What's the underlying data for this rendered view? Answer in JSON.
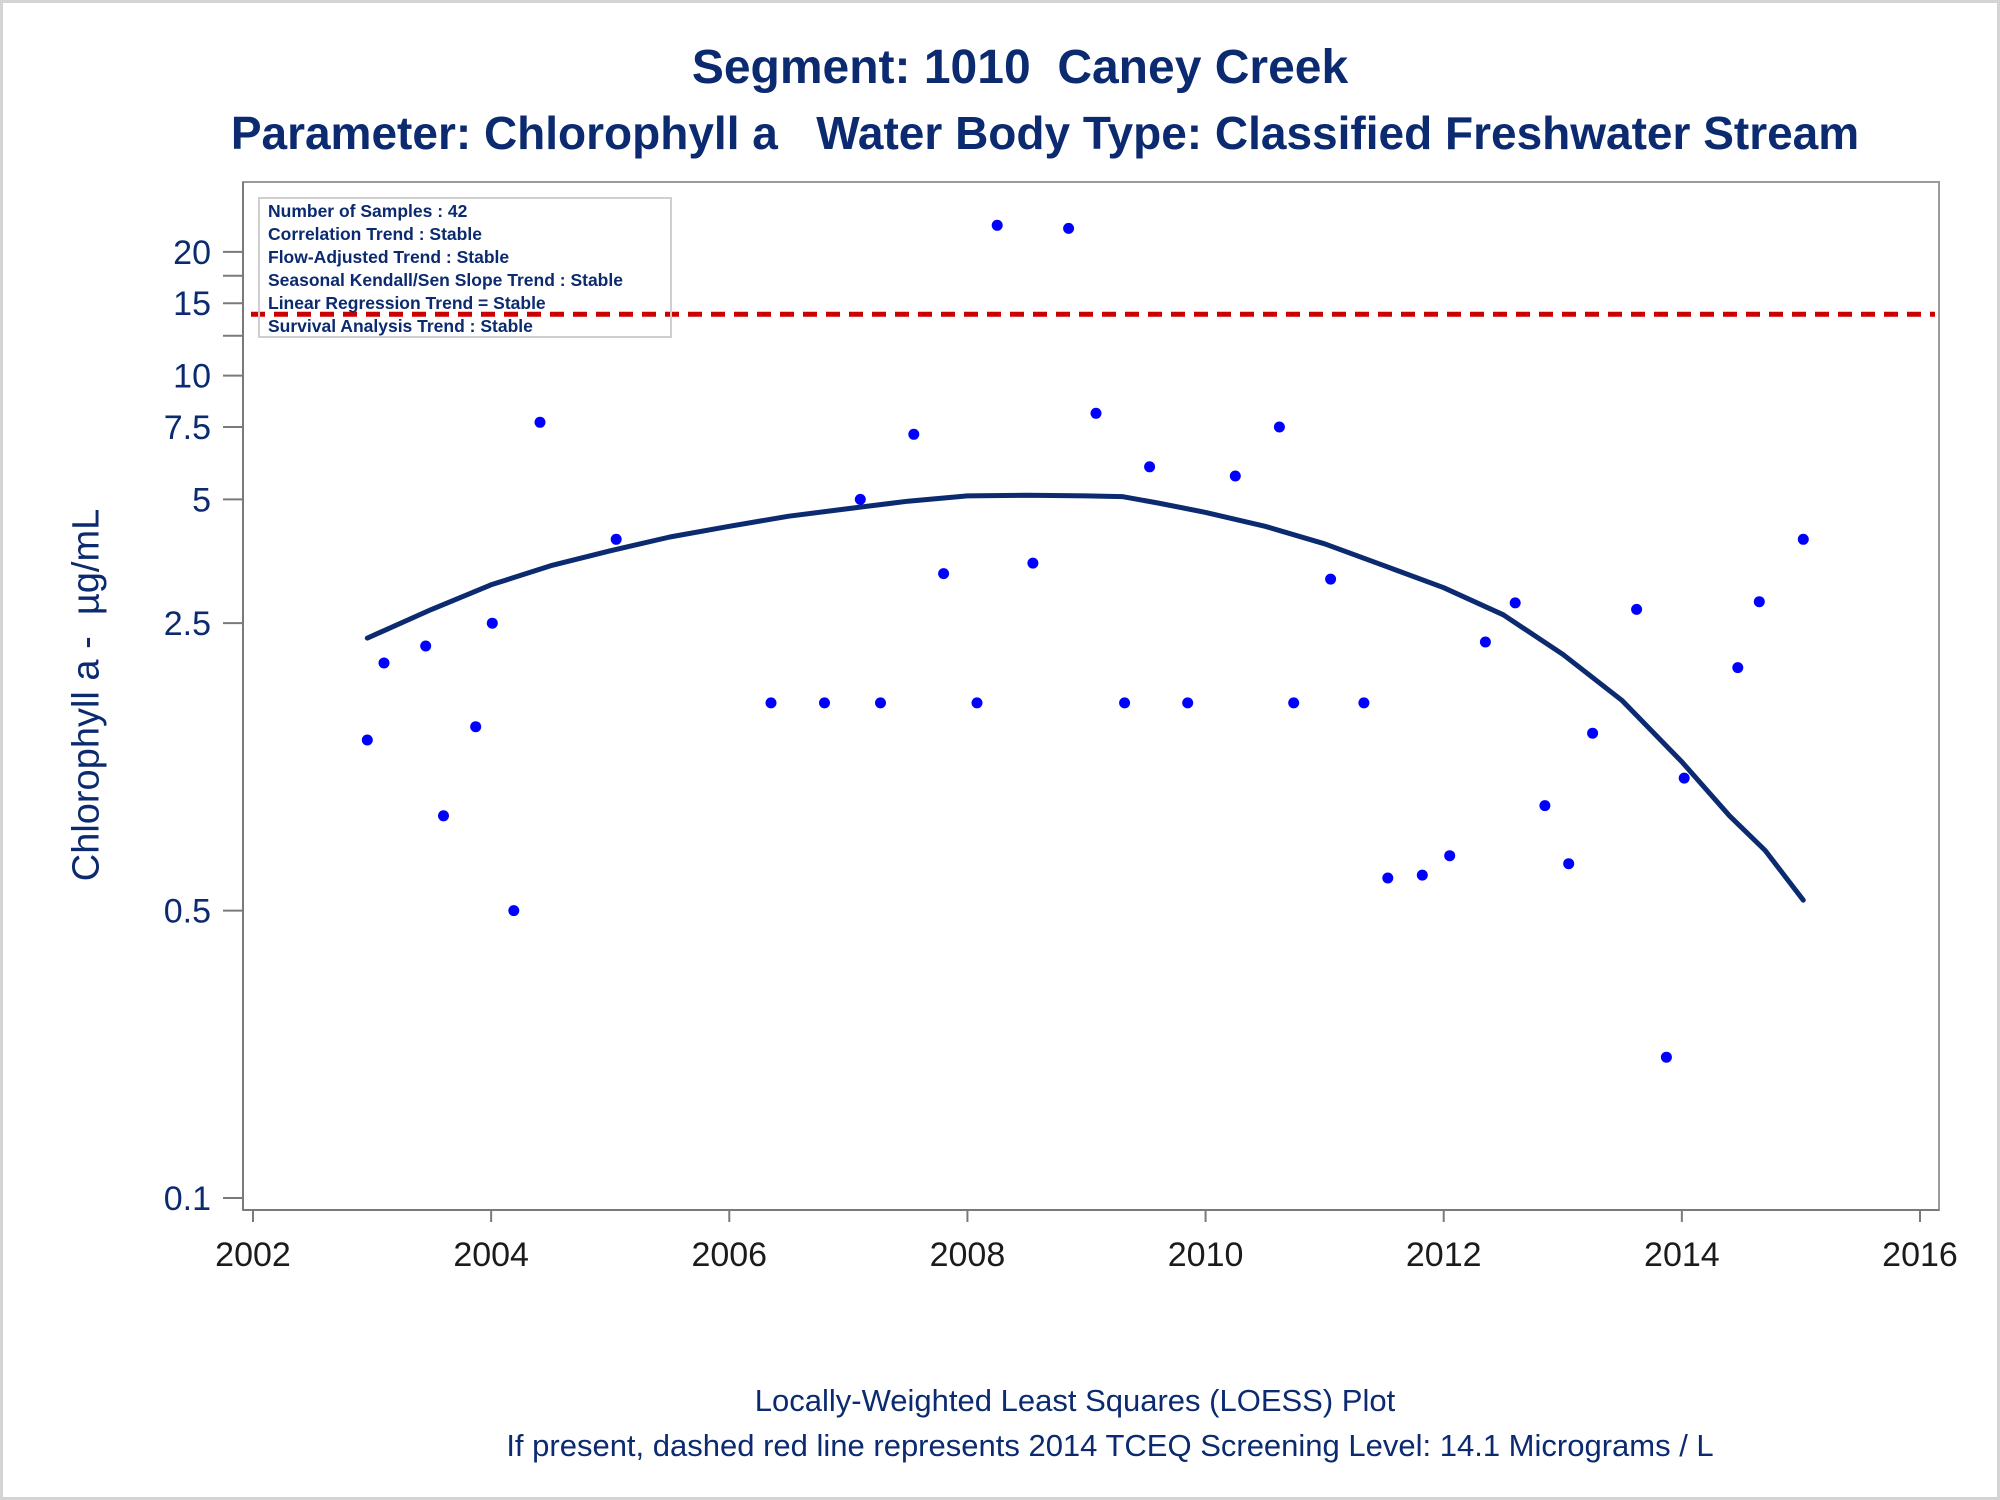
{
  "chart_data": {
    "type": "scatter",
    "title": "Segment: 1010  Caney Creek",
    "subtitle": "Parameter: Chlorophyll a   Water Body Type: Classified Freshwater Stream",
    "xlabel": "",
    "ylabel": "Chlorophyll a -  µg/mL",
    "footnotes": [
      "Locally-Weighted Least Squares (LOESS) Plot",
      "If present, dashed red line represents 2014 TCEQ Screening Level: 14.1 Micrograms / L"
    ],
    "stats": [
      "Number of Samples : 42",
      "Correlation Trend : Stable",
      "Flow-Adjusted Trend : Stable",
      "Seasonal Kendall/Sen Slope Trend : Stable",
      "Linear Regression Trend = Stable",
      "Survival Analysis Trend : Stable"
    ],
    "x_axis": {
      "type": "date",
      "range": [
        2002.0,
        2016.0
      ],
      "ticks": [
        2002,
        2004,
        2006,
        2008,
        2010,
        2012,
        2014,
        2016
      ],
      "tick_labels": [
        "2002",
        "2004",
        "2006",
        "2008",
        "2010",
        "2012",
        "2014",
        "2016"
      ]
    },
    "y_axis": {
      "type": "log",
      "range": [
        0.1,
        25.0
      ],
      "ticks": [
        0.1,
        0.5,
        2.5,
        5,
        7.5,
        10,
        15,
        20
      ],
      "tick_labels": [
        "0.1",
        "0.5",
        "2.5",
        "5",
        "7.5",
        "10",
        "15",
        "20"
      ],
      "minor_ticks": [
        12.5,
        17.5
      ]
    },
    "screening_level": {
      "value": 14.1,
      "color": "#cc0000",
      "style": "dashed"
    },
    "grid": false,
    "series": [
      {
        "kind": "points",
        "color": "#0000ff",
        "points": [
          [
            2002.96,
            1.3
          ],
          [
            2003.1,
            2.0
          ],
          [
            2003.45,
            2.2
          ],
          [
            2003.6,
            0.85
          ],
          [
            2003.87,
            1.4
          ],
          [
            2004.01,
            2.5
          ],
          [
            2004.19,
            0.5
          ],
          [
            2004.41,
            7.7
          ],
          [
            2005.05,
            4.0
          ],
          [
            2006.35,
            1.6
          ],
          [
            2006.8,
            1.6
          ],
          [
            2007.1,
            5.0
          ],
          [
            2007.27,
            1.6
          ],
          [
            2007.55,
            7.2
          ],
          [
            2007.8,
            3.3
          ],
          [
            2008.08,
            1.6
          ],
          [
            2008.25,
            23.2
          ],
          [
            2008.55,
            3.5
          ],
          [
            2008.85,
            22.8
          ],
          [
            2009.08,
            8.1
          ],
          [
            2009.32,
            1.6
          ],
          [
            2009.53,
            6.0
          ],
          [
            2009.85,
            1.6
          ],
          [
            2010.25,
            5.7
          ],
          [
            2010.62,
            7.5
          ],
          [
            2010.74,
            1.6
          ],
          [
            2011.05,
            3.2
          ],
          [
            2011.33,
            1.6
          ],
          [
            2011.53,
            0.6
          ],
          [
            2011.82,
            0.61
          ],
          [
            2012.05,
            0.68
          ],
          [
            2012.35,
            2.25
          ],
          [
            2012.6,
            2.8
          ],
          [
            2012.85,
            0.9
          ],
          [
            2013.05,
            0.65
          ],
          [
            2013.25,
            1.35
          ],
          [
            2013.62,
            2.7
          ],
          [
            2013.87,
            0.22
          ],
          [
            2014.02,
            1.05
          ],
          [
            2014.47,
            1.95
          ],
          [
            2014.65,
            2.82
          ],
          [
            2015.02,
            4.0
          ]
        ]
      },
      {
        "kind": "loess",
        "color": "#0b2a6f",
        "points": [
          [
            2002.96,
            2.3
          ],
          [
            2003.5,
            2.7
          ],
          [
            2004.0,
            3.1
          ],
          [
            2004.5,
            3.45
          ],
          [
            2005.0,
            3.75
          ],
          [
            2005.5,
            4.05
          ],
          [
            2006.0,
            4.3
          ],
          [
            2006.5,
            4.55
          ],
          [
            2007.0,
            4.75
          ],
          [
            2007.5,
            4.95
          ],
          [
            2008.0,
            5.1
          ],
          [
            2008.5,
            5.12
          ],
          [
            2009.0,
            5.1
          ],
          [
            2009.3,
            5.08
          ],
          [
            2009.6,
            4.9
          ],
          [
            2010.0,
            4.65
          ],
          [
            2010.5,
            4.3
          ],
          [
            2011.0,
            3.9
          ],
          [
            2011.5,
            3.45
          ],
          [
            2012.0,
            3.05
          ],
          [
            2012.5,
            2.62
          ],
          [
            2013.0,
            2.1
          ],
          [
            2013.5,
            1.62
          ],
          [
            2014.0,
            1.15
          ],
          [
            2014.4,
            0.85
          ],
          [
            2014.7,
            0.7
          ],
          [
            2015.02,
            0.53
          ]
        ]
      }
    ]
  }
}
